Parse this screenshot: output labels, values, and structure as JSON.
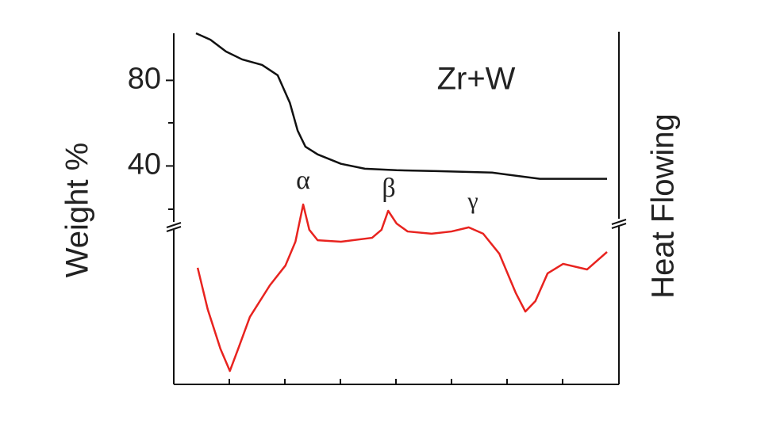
{
  "chart_data": {
    "type": "line",
    "y_label": "Weight %",
    "y2_label": "Heat Flowing",
    "annotations": [
      "Zr+W",
      "α",
      "β",
      "γ"
    ],
    "xlim": [
      0,
      8
    ],
    "xticks": [
      1,
      2,
      3,
      4,
      5,
      6,
      7
    ],
    "ylim": [
      12,
      102
    ],
    "yticks": [
      40,
      80
    ],
    "y2lim": [
      0,
      100
    ],
    "series": [
      {
        "color": "#111111",
        "x": [
          0.4,
          0.66,
          0.94,
          1.23,
          1.59,
          1.87,
          2.09,
          2.23,
          2.37,
          2.59,
          3.01,
          3.44,
          4.01,
          4.73,
          5.73,
          6.59,
          7.8
        ],
        "values": [
          102,
          99,
          93.5,
          89.8,
          87.2,
          82.4,
          69.5,
          56.5,
          49,
          45.4,
          41,
          38.7,
          38,
          37.6,
          36.9,
          34,
          34
        ]
      },
      {
        "color": "#e8231f",
        "axis": "y2",
        "x": [
          0.43,
          0.61,
          0.84,
          1.01,
          1.16,
          1.37,
          1.73,
          2.01,
          2.19,
          2.33,
          2.44,
          2.59,
          3.01,
          3.57,
          3.74,
          3.86,
          4.01,
          4.21,
          4.64,
          5.0,
          5.31,
          5.57,
          5.86,
          6.16,
          6.33,
          6.51,
          6.73,
          7.01,
          7.44,
          7.8
        ],
        "values": [
          62.6,
          40.4,
          19.1,
          7.2,
          19.1,
          36.2,
          53.2,
          63.8,
          76.6,
          96.6,
          83,
          77.4,
          76.6,
          78.7,
          83,
          93.2,
          86.4,
          82.1,
          80.9,
          82.1,
          84.3,
          80.9,
          70.2,
          48.9,
          39.1,
          44.7,
          59.6,
          64.7,
          61.7,
          71.1
        ]
      }
    ]
  }
}
